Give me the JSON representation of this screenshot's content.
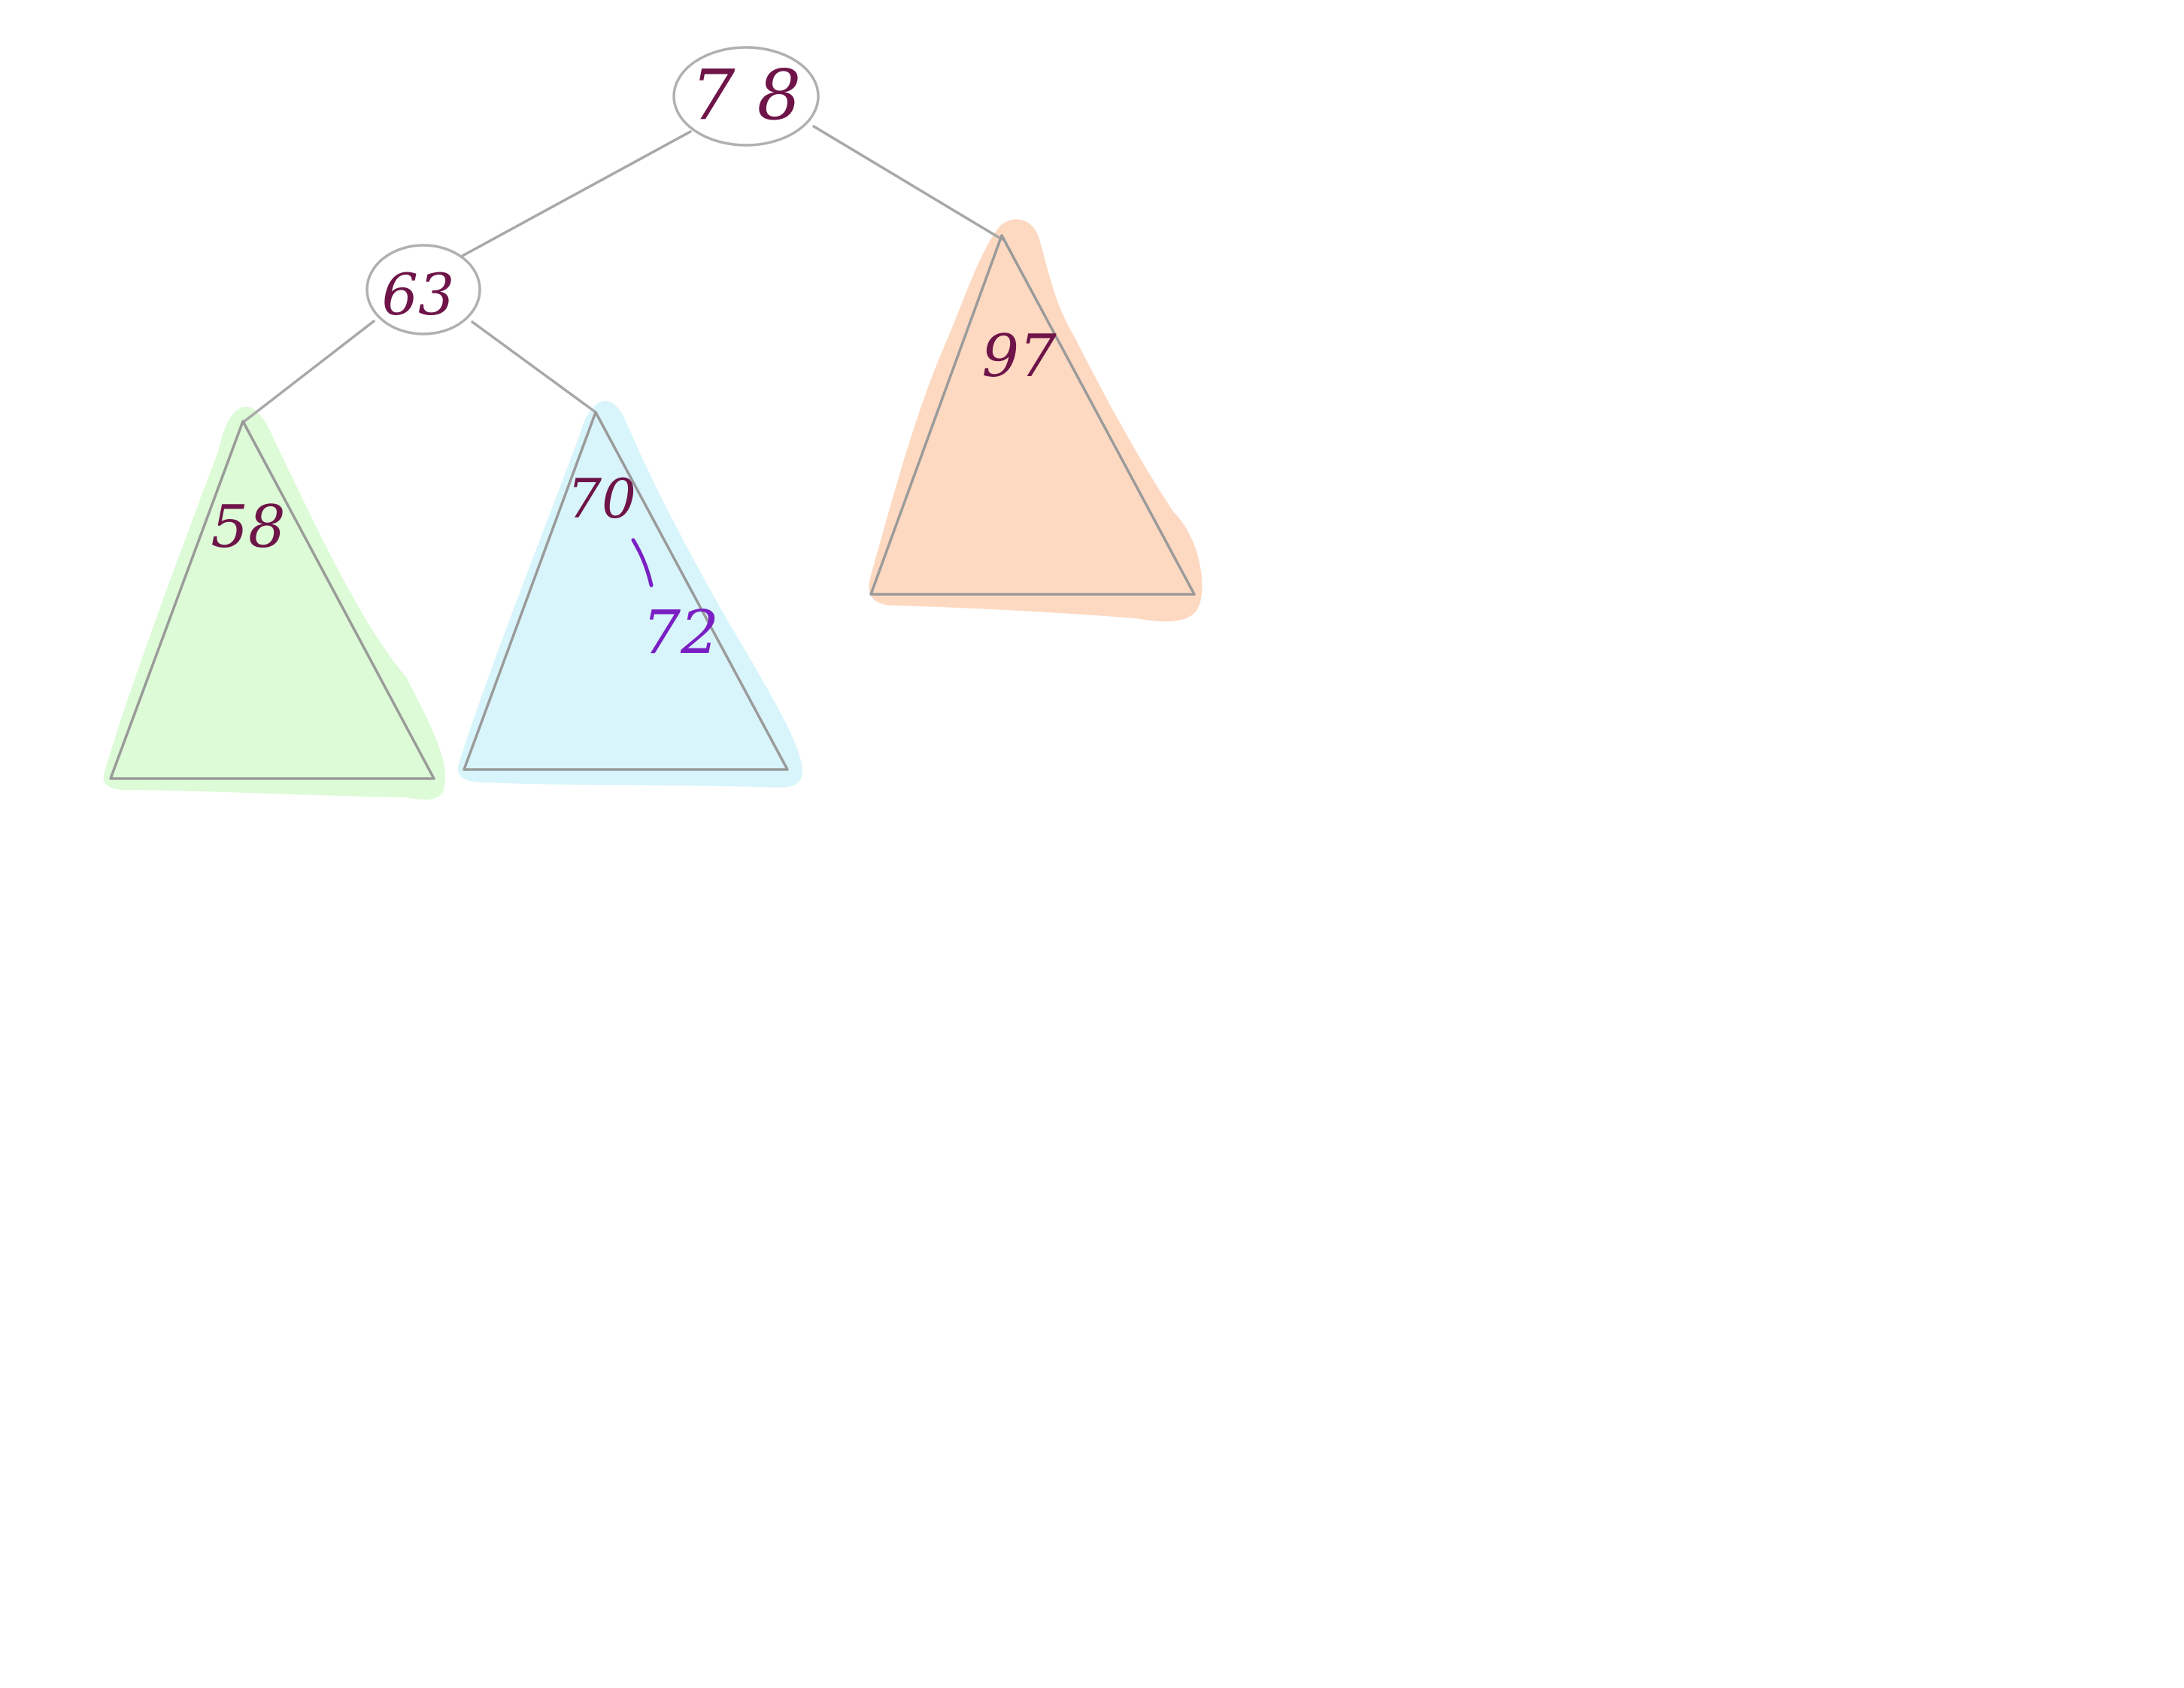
{
  "tree": {
    "root": {
      "label": "7 8"
    },
    "left_child": {
      "label": "63"
    },
    "subtrees": {
      "left_left": {
        "label": "58",
        "color": "#dcfbd6"
      },
      "left_right": {
        "label": "70",
        "sub_label": "72",
        "color": "#d8f5fb"
      },
      "right": {
        "label": "97",
        "color": "#fdd9c2"
      }
    }
  },
  "colors": {
    "edge": "#a8a8a8",
    "ink": "#6e1448",
    "ink_purple": "#7a1fc4"
  }
}
